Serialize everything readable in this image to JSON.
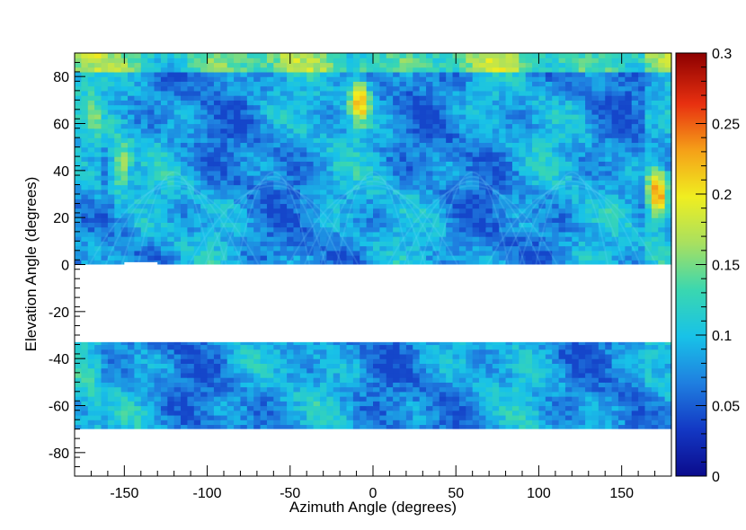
{
  "chart_data": {
    "type": "heatmap",
    "title": "",
    "xlabel": "Azimuth Angle (degrees)",
    "ylabel": "Elevation Angle (degrees)",
    "xlim": [
      -180,
      180
    ],
    "ylim": [
      -90,
      90
    ],
    "x_ticks": [
      "-150",
      "-100",
      "-50",
      "0",
      "50",
      "100",
      "150"
    ],
    "y_ticks": [
      "-80",
      "-60",
      "-40",
      "-20",
      "0",
      "20",
      "40",
      "60",
      "80"
    ],
    "colorbar": {
      "range": [
        0,
        0.3
      ],
      "ticks": [
        "0",
        "0.05",
        "0.1",
        "0.15",
        "0.2",
        "0.25",
        "0.3"
      ],
      "colormap": [
        "#0b0b8c",
        "#1338c4",
        "#1f7fe0",
        "#18c2e8",
        "#3ad7b0",
        "#a8e060",
        "#f0ee20",
        "#f5a018",
        "#e83010",
        "#8c0000"
      ]
    },
    "data_regions": [
      {
        "elevation": [
          0,
          90
        ],
        "azimuth": [
          -180,
          180
        ],
        "typical_value": 0.08,
        "value_range": [
          0.04,
          0.2
        ]
      },
      {
        "elevation": [
          -70,
          -33
        ],
        "azimuth": [
          -180,
          180
        ],
        "typical_value": 0.08,
        "value_range": [
          0.04,
          0.16
        ]
      }
    ],
    "empty_regions": [
      {
        "elevation": [
          -33,
          0
        ],
        "azimuth": [
          -180,
          180
        ]
      },
      {
        "elevation": [
          -90,
          -70
        ],
        "azimuth": [
          -180,
          180
        ]
      },
      {
        "elevation": [
          0,
          1
        ],
        "azimuth": [
          -150,
          -130
        ]
      }
    ],
    "hotspots": [
      {
        "azimuth": 172,
        "elevation": 30,
        "value": 0.24
      },
      {
        "azimuth": -8,
        "elevation": 70,
        "value": 0.22
      },
      {
        "azimuth": -152,
        "elevation": 42,
        "value": 0.17
      }
    ]
  }
}
